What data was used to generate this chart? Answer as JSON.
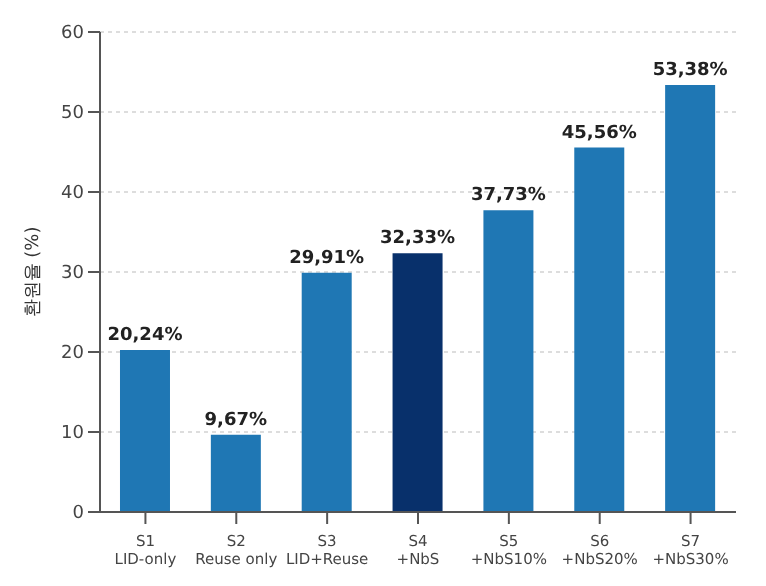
{
  "chart_data": {
    "type": "bar",
    "ylabel": "환원율 (%)",
    "categories": [
      "S1\nLID-only",
      "S2\nReuse only",
      "S3\nLID+Reuse",
      "S4\n+NbS",
      "S5\n+NbS10%",
      "S6\n+NbS20%",
      "S7\n+NbS30%"
    ],
    "values": [
      20.24,
      9.67,
      29.91,
      32.33,
      37.73,
      45.56,
      53.38
    ],
    "colors": [
      "#1f77b4",
      "#1f77b4",
      "#1f77b4",
      "#08306b",
      "#1f77b4",
      "#1f77b4",
      "#1f77b4"
    ],
    "value_labels": [
      "20,24%",
      "9,67%",
      "29,91%",
      "32,33%",
      "37,73%",
      "45,56%",
      "53,38%"
    ],
    "ylim": [
      0,
      60
    ],
    "yticks": [
      0,
      10,
      20,
      30,
      40,
      50,
      60
    ],
    "grid": "y"
  }
}
